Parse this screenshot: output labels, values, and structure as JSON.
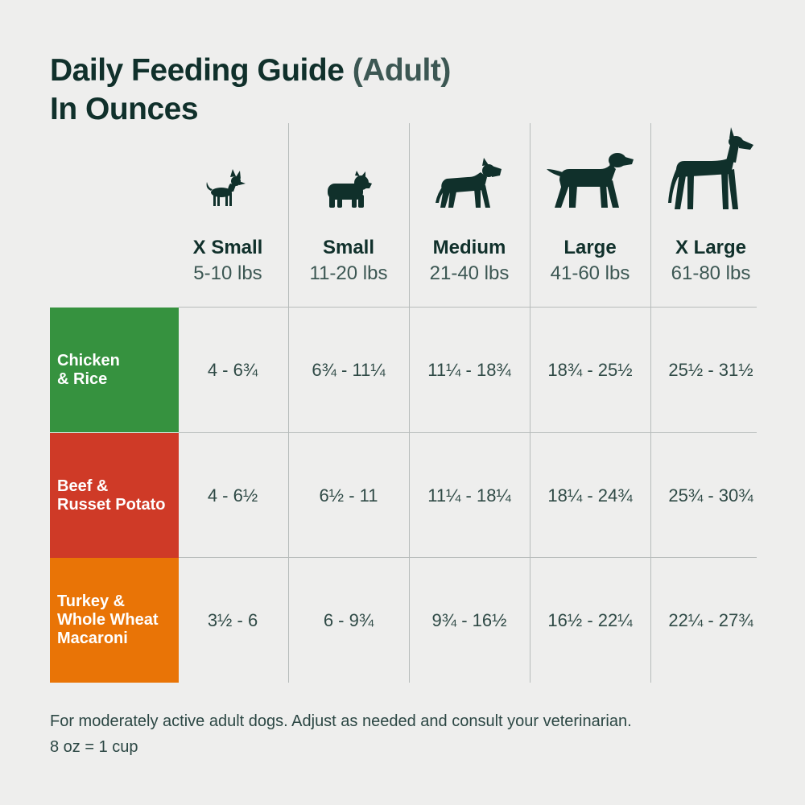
{
  "title": {
    "main": "Daily Feeding Guide",
    "accent": "(Adult)",
    "line2": "In Ounces"
  },
  "columns": [
    {
      "icon": "chihuahua-icon",
      "size": "X Small",
      "range": "5-10 lbs"
    },
    {
      "icon": "french-bulldog-icon",
      "size": "Small",
      "range": "11-20 lbs"
    },
    {
      "icon": "pitbull-icon",
      "size": "Medium",
      "range": "21-40 lbs"
    },
    {
      "icon": "labrador-icon",
      "size": "Large",
      "range": "41-60 lbs"
    },
    {
      "icon": "great-dane-icon",
      "size": "X Large",
      "range": "61-80 lbs"
    }
  ],
  "rows": [
    {
      "label_line1": "Chicken",
      "label_line2": "& Rice",
      "label_line3": "",
      "color": "#36923f",
      "values": [
        "4 - 6¾",
        "6¾ - 11¼",
        "11¼ - 18¾",
        "18¾ - 25½",
        "25½ - 31½"
      ]
    },
    {
      "label_line1": "Beef &",
      "label_line2": "Russet Potato",
      "label_line3": "",
      "color": "#cf3a27",
      "values": [
        "4 - 6½",
        "6½ - 11",
        "11¼ - 18¼",
        "18¼ - 24¾",
        "25¾ - 30¾"
      ]
    },
    {
      "label_line1": "Turkey &",
      "label_line2": "Whole Wheat",
      "label_line3": "Macaroni",
      "color": "#e97406",
      "values": [
        "3½ - 6",
        "6 - 9¾",
        "9¾ - 16½",
        "16½ - 22¼",
        "22¼ - 27¾"
      ]
    }
  ],
  "footnote": {
    "line1": "For moderately active adult dogs. Adjust as needed and consult your veterinarian.",
    "line2": "8 oz = 1 cup"
  }
}
